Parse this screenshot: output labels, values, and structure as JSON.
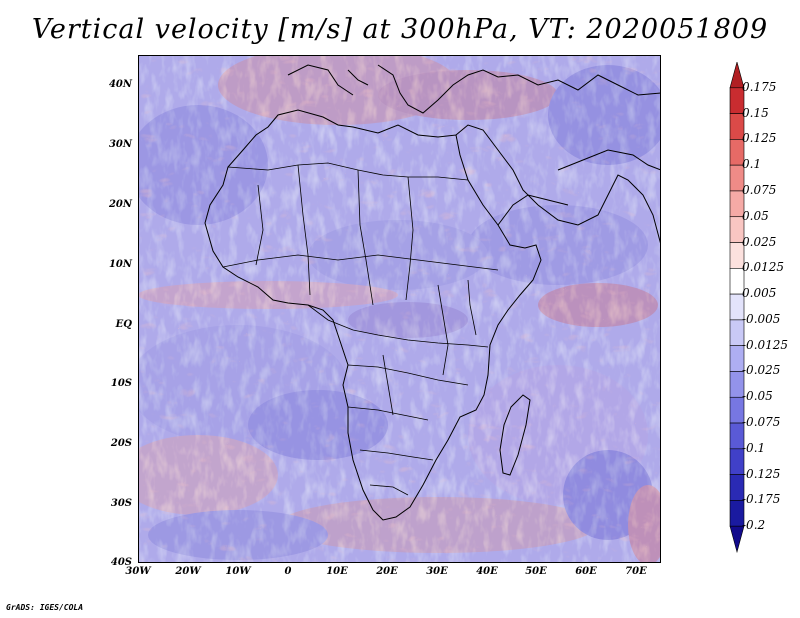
{
  "title": "Vertical velocity [m/s] at 300hPa, VT: 2020051809",
  "credit": "GrADS: IGES/COLA",
  "lat_labels": [
    "40N",
    "30N",
    "20N",
    "10N",
    "EQ",
    "10S",
    "20S",
    "30S",
    "40S"
  ],
  "lon_labels": [
    "30W",
    "20W",
    "10W",
    "0",
    "10E",
    "20E",
    "30E",
    "40E",
    "50E",
    "60E",
    "70E"
  ],
  "colorbar": {
    "levels": [
      "0.175",
      "0.15",
      "0.125",
      "0.1",
      "0.075",
      "0.05",
      "0.025",
      "0.0125",
      "0.005",
      "-0.005",
      "-0.0125",
      "-0.025",
      "-0.05",
      "-0.075",
      "-0.1",
      "-0.125",
      "-0.175",
      "-0.2"
    ],
    "colors": [
      "#b11f23",
      "#c92c30",
      "#db4a48",
      "#e66a66",
      "#ef8b87",
      "#f5aaa6",
      "#f9c6c2",
      "#fce1de",
      "#ffffff",
      "#e3e3fb",
      "#c9c9f6",
      "#aeaef2",
      "#9393ea",
      "#7777e2",
      "#5a5ad6",
      "#4040c8",
      "#2a2ab4",
      "#1a1aa0",
      "#120a8c"
    ]
  },
  "chart_data": {
    "type": "heatmap",
    "title": "Vertical velocity [m/s] at 300hPa, VT: 2020051809",
    "variable": "Vertical velocity",
    "units": "m/s",
    "level": "300hPa",
    "valid_time": "2020051809",
    "lon_range": [
      -30,
      75
    ],
    "lat_range": [
      -40,
      45
    ],
    "x_ticks": [
      "30W",
      "20W",
      "10W",
      "0",
      "10E",
      "20E",
      "30E",
      "40E",
      "50E",
      "60E",
      "70E"
    ],
    "y_ticks": [
      "40N",
      "30N",
      "20N",
      "10N",
      "EQ",
      "10S",
      "20S",
      "30S",
      "40S"
    ],
    "contour_levels": [
      -0.2,
      -0.175,
      -0.125,
      -0.1,
      -0.075,
      -0.05,
      -0.025,
      -0.0125,
      -0.005,
      0.005,
      0.0125,
      0.025,
      0.05,
      0.075,
      0.1,
      0.125,
      0.15,
      0.175
    ]
  }
}
